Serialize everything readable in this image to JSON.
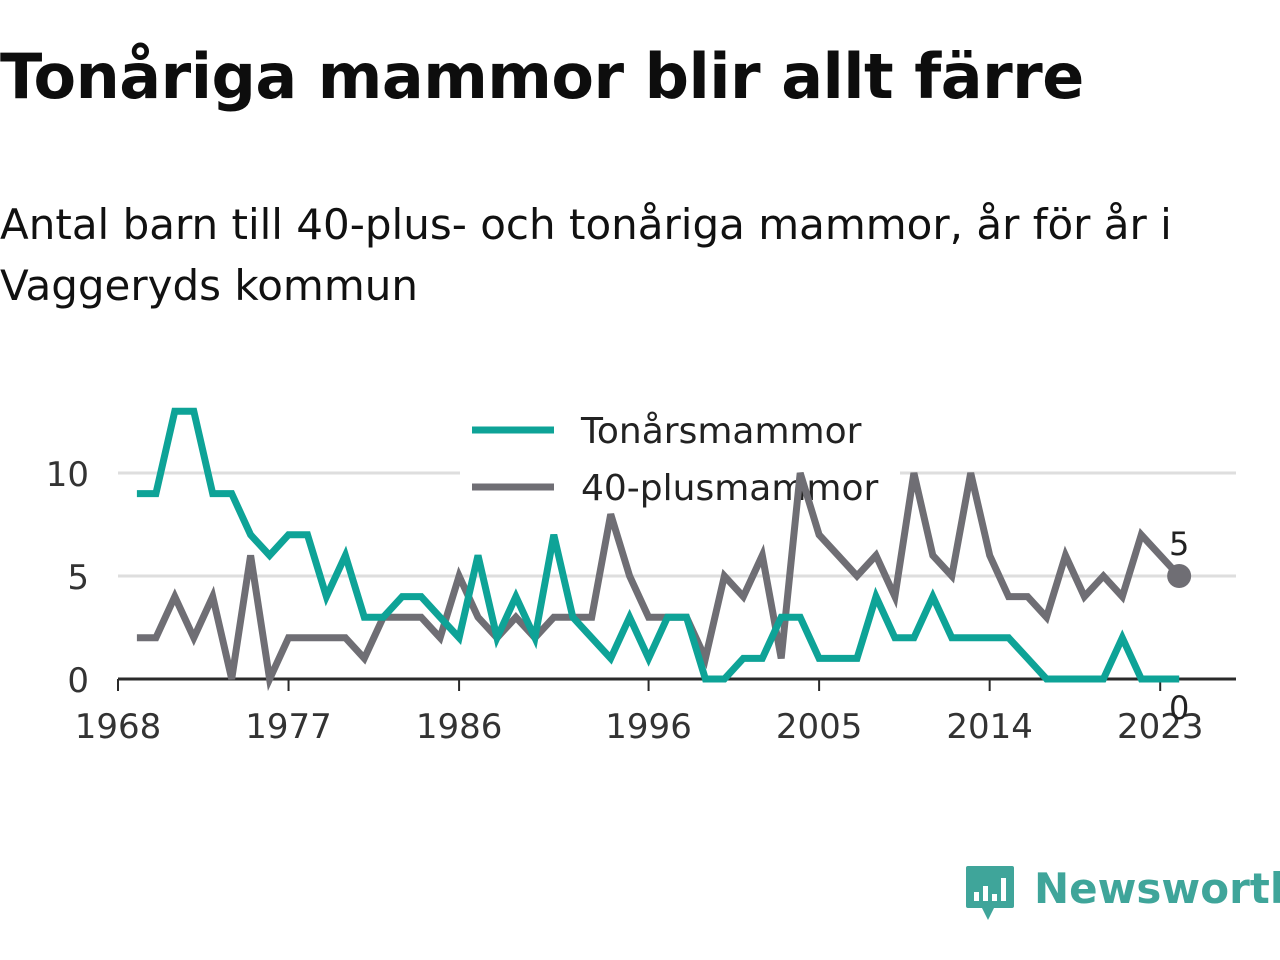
{
  "title": "Tonåriga mammor blir allt färre",
  "subtitle": "Antal barn till 40-plus- och tonåriga mammor, år för år i Vaggeryds kommun",
  "brand": {
    "name": "Newsworthy",
    "color": "#3fa59a",
    "icon": "newsworthy-bar-chart-logo-icon"
  },
  "chart_data": {
    "type": "line",
    "x": [
      1969,
      1970,
      1971,
      1972,
      1973,
      1974,
      1975,
      1976,
      1977,
      1978,
      1979,
      1980,
      1981,
      1982,
      1983,
      1984,
      1985,
      1986,
      1987,
      1988,
      1989,
      1990,
      1991,
      1992,
      1993,
      1994,
      1995,
      1996,
      1997,
      1998,
      1999,
      2000,
      2001,
      2002,
      2003,
      2004,
      2005,
      2006,
      2007,
      2008,
      2009,
      2010,
      2011,
      2012,
      2013,
      2014,
      2015,
      2016,
      2017,
      2018,
      2019,
      2020,
      2021,
      2022,
      2023,
      2024
    ],
    "series": [
      {
        "name": "Tonårsmammor",
        "color": "#0ea397",
        "values": [
          9,
          9,
          13,
          13,
          9,
          9,
          7,
          6,
          7,
          7,
          4,
          6,
          3,
          3,
          4,
          4,
          3,
          2,
          6,
          2,
          4,
          2,
          7,
          3,
          2,
          1,
          3,
          1,
          3,
          3,
          0,
          0,
          1,
          1,
          3,
          3,
          1,
          1,
          1,
          4,
          2,
          2,
          4,
          2,
          2,
          2,
          2,
          1,
          0,
          0,
          0,
          0,
          2,
          0,
          0,
          0
        ]
      },
      {
        "name": "40-plusmammor",
        "color": "#6f6e74",
        "values": [
          2,
          2,
          4,
          2,
          4,
          0,
          6,
          0,
          2,
          2,
          2,
          2,
          1,
          3,
          3,
          3,
          2,
          5,
          3,
          2,
          3,
          2,
          3,
          3,
          3,
          8,
          5,
          3,
          3,
          3,
          1,
          5,
          4,
          6,
          1,
          10,
          7,
          6,
          5,
          6,
          4,
          10,
          6,
          5,
          10,
          6,
          4,
          4,
          3,
          6,
          4,
          5,
          4,
          7,
          6,
          5
        ]
      }
    ],
    "x_ticks": [
      "1968",
      "1977",
      "1986",
      "1996",
      "2005",
      "2014",
      "2023"
    ],
    "y_ticks": [
      "0",
      "5",
      "10"
    ],
    "xlim": [
      1968,
      2027
    ],
    "ylim": [
      0,
      13
    ],
    "grid": true,
    "legend": "top-center",
    "end_labels": [
      "0",
      "5"
    ]
  }
}
